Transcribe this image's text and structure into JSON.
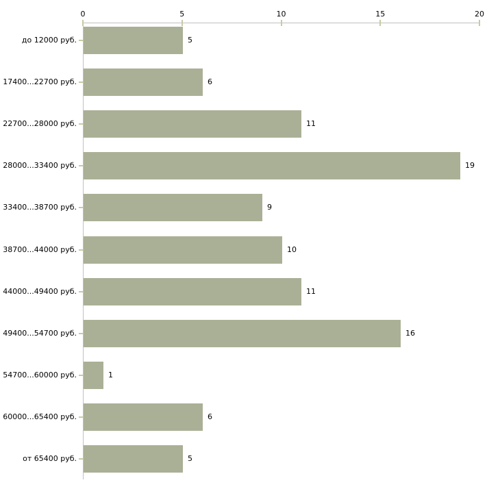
{
  "chart_data": {
    "type": "bar",
    "orientation": "horizontal",
    "title": "",
    "xlabel": "",
    "ylabel": "",
    "categories": [
      "до 12000 руб.",
      "17400...22700 руб.",
      "22700...28000 руб.",
      "28000...33400 руб.",
      "33400...38700 руб.",
      "38700...44000 руб.",
      "44000...49400 руб.",
      "49400...54700 руб.",
      "54700...60000 руб.",
      "60000...65400 руб.",
      "от 65400 руб."
    ],
    "values": [
      5,
      6,
      11,
      19,
      9,
      10,
      11,
      16,
      1,
      6,
      5
    ],
    "xlim": [
      0,
      20
    ],
    "x_ticks": [
      "0",
      "5",
      "10",
      "15",
      "20"
    ],
    "x_tick_values": [
      0,
      5,
      10,
      15,
      20
    ],
    "grid": false,
    "legend_position": "none",
    "value_labels_shown": true,
    "axis_position": "top",
    "colors": {
      "bar": "#aab095",
      "axis_line": "#c0c0c0",
      "tick": "#c9caa2",
      "text": "#000000",
      "background": "#ffffff"
    }
  }
}
